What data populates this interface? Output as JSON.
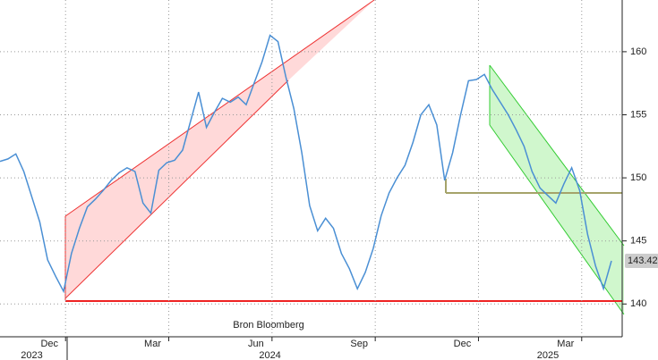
{
  "chart_data": {
    "type": "line",
    "annotation": "Bron Bloomberg",
    "categories": [
      null,
      null,
      null,
      null,
      null,
      null,
      "Dec",
      null,
      null,
      null,
      null,
      null,
      null,
      null,
      null,
      null,
      null,
      null,
      null,
      "Mar",
      null,
      null,
      null,
      null,
      null,
      null,
      null,
      null,
      null,
      null,
      null,
      null,
      "Jun",
      null,
      null,
      null,
      null,
      null,
      null,
      null,
      null,
      null,
      null,
      null,
      null,
      "Sep",
      null,
      null,
      null,
      null,
      null,
      null,
      null,
      null,
      null,
      null,
      null,
      null,
      "Dec",
      null,
      null,
      null,
      null,
      null,
      null,
      null,
      null,
      null,
      null,
      null,
      null,
      "Mar",
      null,
      null,
      null,
      null,
      null,
      null
    ],
    "year_labels": [
      null,
      null,
      null,
      null,
      "2023",
      null,
      null,
      null,
      null,
      null,
      null,
      null,
      null,
      null,
      null,
      null,
      null,
      null,
      null,
      null,
      null,
      null,
      null,
      null,
      null,
      null,
      null,
      null,
      null,
      null,
      null,
      null,
      null,
      null,
      "2024",
      null,
      null,
      null,
      null,
      null,
      null,
      null,
      null,
      null,
      null,
      null,
      null,
      null,
      null,
      null,
      null,
      null,
      null,
      null,
      null,
      null,
      null,
      null,
      null,
      null,
      null,
      null,
      null,
      null,
      null,
      null,
      null,
      null,
      null,
      "2025",
      null,
      null,
      null,
      null,
      null,
      null,
      null,
      null
    ],
    "values": [
      151.3,
      151.5,
      151.9,
      150.5,
      148.5,
      146.5,
      143.5,
      142.2,
      141.0,
      144.0,
      146.0,
      147.7,
      148.3,
      149.0,
      149.8,
      150.4,
      150.8,
      150.5,
      148.0,
      147.2,
      150.6,
      151.2,
      151.4,
      152.2,
      154.5,
      156.8,
      154.0,
      155.2,
      156.3,
      156.0,
      156.4,
      155.8,
      157.5,
      159.2,
      161.3,
      160.8,
      158.0,
      155.5,
      152.0,
      147.8,
      145.8,
      146.8,
      146.0,
      144.0,
      142.8,
      141.2,
      142.5,
      144.4,
      147.0,
      148.8,
      150.0,
      151.0,
      152.8,
      155.0,
      155.8,
      154.2,
      149.8,
      152.0,
      155.0,
      157.7,
      157.8,
      158.2,
      157.0,
      156.0,
      155.0,
      153.8,
      152.5,
      150.5,
      149.2,
      148.6,
      148.0,
      149.5,
      150.8,
      149.0,
      145.5,
      143.0,
      141.2,
      143.42
    ],
    "color": "#4a8fd4",
    "ylim": [
      137.4,
      164.1
    ],
    "yticks": [
      140,
      145,
      150,
      155,
      160
    ],
    "grid": true
  }
}
